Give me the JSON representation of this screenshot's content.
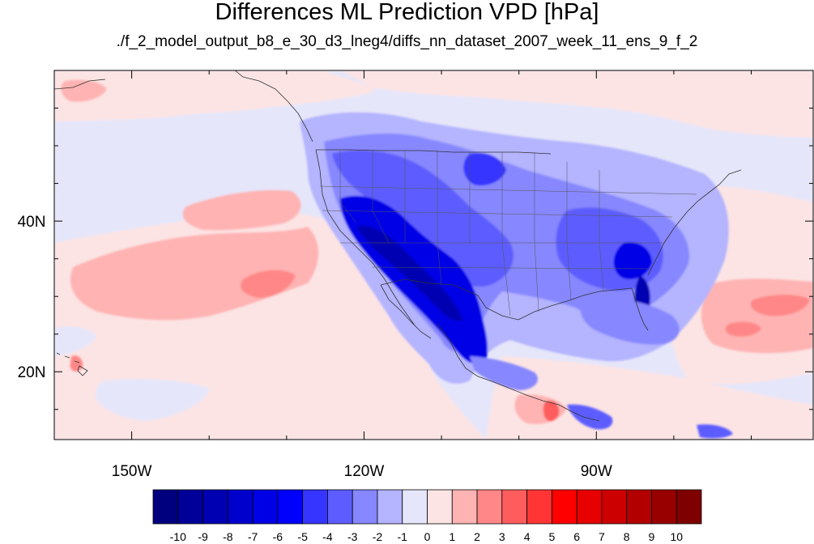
{
  "title": "Differences ML Prediction VPD [hPa]",
  "subtitle": "./f_2_model_output_b8_e_30_d3_lneg4/diffs_nn_dataset_2007_week_11_ens_9_f_2",
  "map": {
    "lon_range": [
      -160,
      -62
    ],
    "lat_range": [
      11,
      60
    ],
    "lon_ticks": [
      {
        "value": -150,
        "label": "150W"
      },
      {
        "value": -120,
        "label": "120W"
      },
      {
        "value": -90,
        "label": "90W"
      }
    ],
    "lat_ticks": [
      {
        "value": 40,
        "label": "40N"
      },
      {
        "value": 20,
        "label": "20N"
      }
    ]
  },
  "colorbar": {
    "labels": [
      "-10",
      "-9",
      "-8",
      "-7",
      "-6",
      "-5",
      "-4",
      "-3",
      "-2",
      "-1",
      "0",
      "1",
      "2",
      "3",
      "4",
      "5",
      "6",
      "7",
      "8",
      "9",
      "10"
    ],
    "colors": [
      "#00007e",
      "#000098",
      "#0000b2",
      "#0000cc",
      "#0000e6",
      "#0000ff",
      "#3535ff",
      "#5d5dff",
      "#8787ff",
      "#b4b4ff",
      "#e6e6fa",
      "#fce4e4",
      "#ffb3b3",
      "#ff8787",
      "#ff5d5d",
      "#ff3535",
      "#ff0000",
      "#e60000",
      "#cc0000",
      "#b20000",
      "#980000",
      "#7e0000"
    ]
  }
}
